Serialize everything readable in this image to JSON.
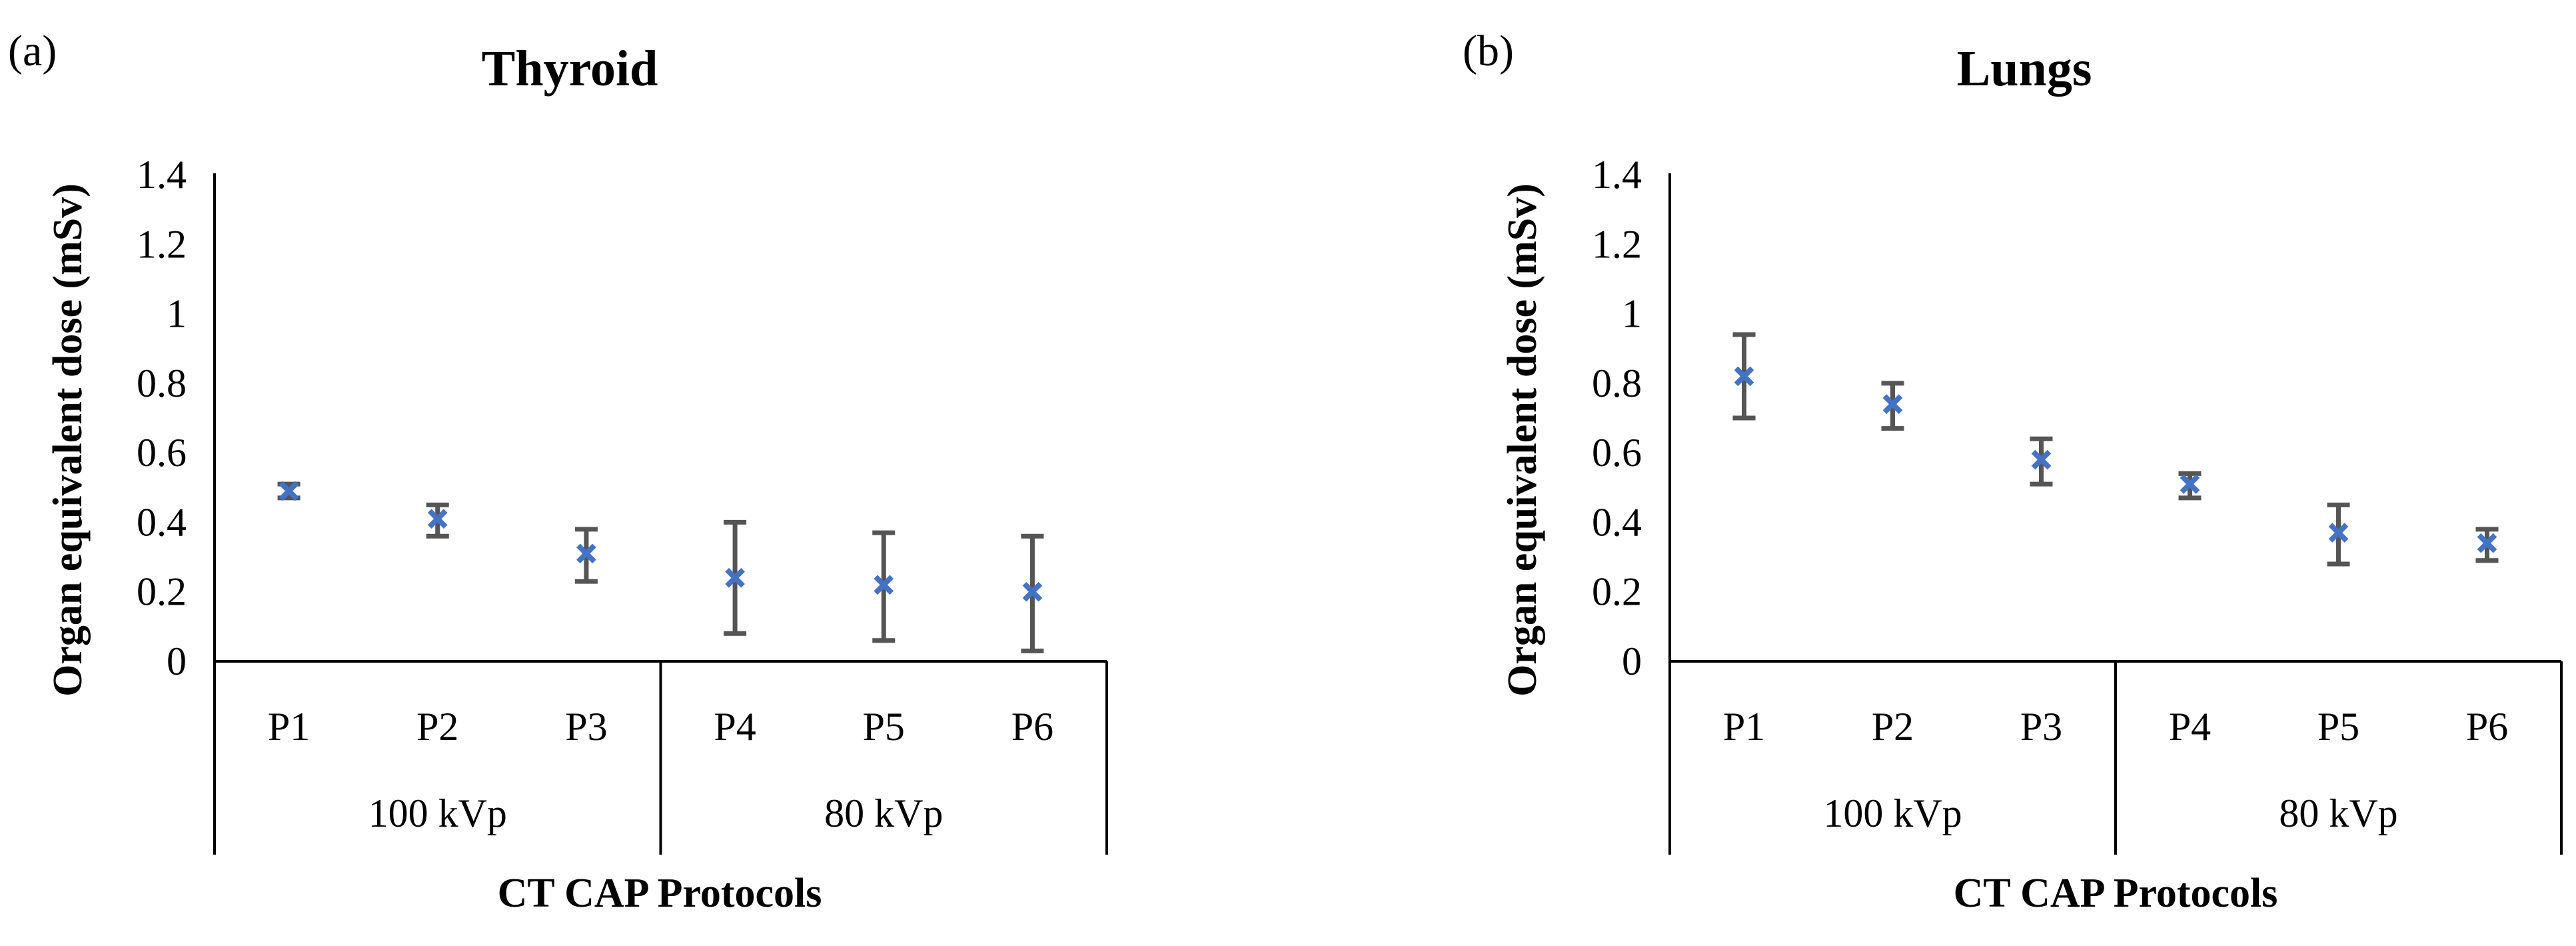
{
  "chart_data": [
    {
      "type": "scatter",
      "panel_label": "(a)",
      "title": "Thyroid",
      "ylabel": "Organ equivalent dose (mSv)",
      "xlabel": "CT CAP Protocols",
      "ylim": [
        0,
        1.4
      ],
      "yticks": [
        "0",
        "0.2",
        "0.4",
        "0.6",
        "0.8",
        "1",
        "1.2",
        "1.4"
      ],
      "categories": [
        "P1",
        "P2",
        "P3",
        "P4",
        "P5",
        "P6"
      ],
      "groups": [
        {
          "label": "100 kVp",
          "categories": [
            "P1",
            "P2",
            "P3"
          ]
        },
        {
          "label": "80 kVp",
          "categories": [
            "P4",
            "P5",
            "P6"
          ]
        }
      ],
      "values": [
        0.49,
        0.41,
        0.31,
        0.24,
        0.22,
        0.2
      ],
      "error_low": [
        0.47,
        0.36,
        0.23,
        0.08,
        0.06,
        0.03
      ],
      "error_high": [
        0.51,
        0.45,
        0.38,
        0.4,
        0.37,
        0.36
      ],
      "marker_color": "#4472C4"
    },
    {
      "type": "scatter",
      "panel_label": "(b)",
      "title": "Lungs",
      "ylabel": "Organ equivalent dose (mSv)",
      "xlabel": "CT CAP Protocols",
      "ylim": [
        0,
        1.4
      ],
      "yticks": [
        "0",
        "0.2",
        "0.4",
        "0.6",
        "0.8",
        "1",
        "1.2",
        "1.4"
      ],
      "categories": [
        "P1",
        "P2",
        "P3",
        "P4",
        "P5",
        "P6"
      ],
      "groups": [
        {
          "label": "100 kVp",
          "categories": [
            "P1",
            "P2",
            "P3"
          ]
        },
        {
          "label": "80 kVp",
          "categories": [
            "P4",
            "P5",
            "P6"
          ]
        }
      ],
      "values": [
        0.82,
        0.74,
        0.58,
        0.51,
        0.37,
        0.34
      ],
      "error_low": [
        0.7,
        0.67,
        0.51,
        0.47,
        0.28,
        0.29
      ],
      "error_high": [
        0.94,
        0.8,
        0.64,
        0.54,
        0.45,
        0.38
      ],
      "marker_color": "#4472C4"
    }
  ]
}
